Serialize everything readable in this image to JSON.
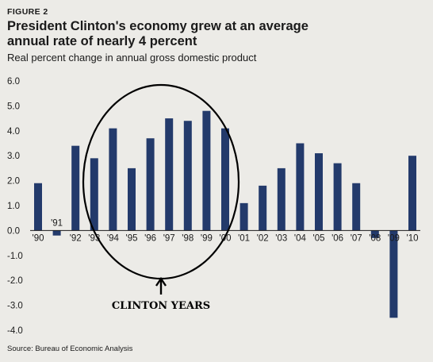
{
  "figure_label": "FIGURE 2",
  "title": "President Clinton's economy grew at an average annual rate of nearly 4 percent",
  "subtitle": "Real percent change in annual gross domestic product",
  "source": "Source: Bureau of Economic Analysis",
  "colors": {
    "bar": "#233a6b",
    "background": "#ecebe7",
    "text": "#1a1a1a"
  },
  "chart_data": {
    "type": "bar",
    "title": "President Clinton's economy grew at an average annual rate of nearly 4 percent",
    "subtitle": "Real percent change in annual gross domestic product",
    "categories": [
      "'90",
      "'91",
      "'92",
      "'93",
      "'94",
      "'95",
      "'96",
      "'97",
      "'98",
      "'99",
      "'00",
      "'01",
      "'02",
      "'03",
      "'04",
      "'05",
      "'06",
      "'07",
      "'08",
      "'09",
      "'10"
    ],
    "values": [
      1.9,
      -0.2,
      3.4,
      2.9,
      4.1,
      2.5,
      3.7,
      4.5,
      4.4,
      4.8,
      4.1,
      1.1,
      1.8,
      2.5,
      3.5,
      3.1,
      2.7,
      1.9,
      -0.3,
      -3.5,
      3.0
    ],
    "yticks": [
      "6.0",
      "5.0",
      "4.0",
      "3.0",
      "2.0",
      "1.0",
      "0.0",
      "-1.0",
      "-2.0",
      "-3.0",
      "-4.0"
    ],
    "ylim": [
      -4.0,
      6.0
    ],
    "grid": false,
    "annotation": "CLINTON YEARS"
  }
}
